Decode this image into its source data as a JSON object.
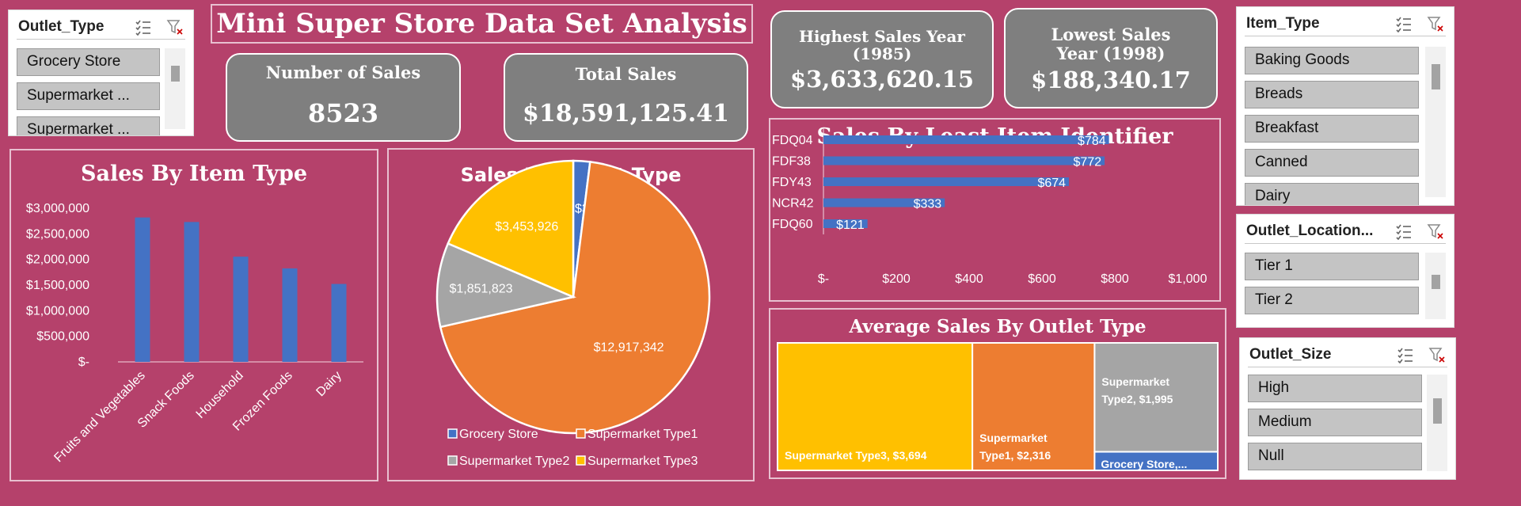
{
  "title": "Mini Super Store Data Set Analysis",
  "kpis": {
    "number_of_sales": {
      "label": "Number of Sales",
      "value": "8523"
    },
    "total_sales": {
      "label": "Total Sales",
      "value": "$18,591,125.41"
    },
    "highest_year": {
      "label": "Highest Sales Year (1985)",
      "value": "$3,633,620.15"
    },
    "lowest_year": {
      "label": "Lowest Sales Year (1998)",
      "value": "$188,340.17"
    }
  },
  "slicers": {
    "outlet_type": {
      "title": "Outlet_Type",
      "items": [
        "Grocery Store",
        "Supermarket ...",
        "Supermarket ..."
      ]
    },
    "item_type": {
      "title": "Item_Type",
      "items": [
        "Baking Goods",
        "Breads",
        "Breakfast",
        "Canned",
        "Dairy"
      ]
    },
    "outlet_location": {
      "title": "Outlet_Location...",
      "items": [
        "Tier 1",
        "Tier 2"
      ]
    },
    "outlet_size": {
      "title": "Outlet_Size",
      "items": [
        "High",
        "Medium",
        "Null"
      ]
    }
  },
  "icons": {
    "multi_select": "multi-select-icon",
    "clear_filter": "clear-filter-icon"
  },
  "colors": {
    "background": "#b5416b",
    "bar_blue": "#4472c4",
    "orange": "#ed7d31",
    "gray": "#a5a5a5",
    "gold": "#ffc000",
    "kpi_gray": "#7f7f7f"
  },
  "chart_data": [
    {
      "type": "bar",
      "title": "Sales By Item Type",
      "categories": [
        "Fruits and Vegetables",
        "Snack Foods",
        "Household",
        "Frozen Foods",
        "Dairy"
      ],
      "values": [
        2820000,
        2732000,
        2055000,
        1826000,
        1522000
      ],
      "ylim": [
        0,
        3000000
      ],
      "yticks": [
        "$-",
        "$500,000",
        "$1,000,000",
        "$1,500,000",
        "$2,000,000",
        "$2,500,000",
        "$3,000,000"
      ],
      "color": "#4472c4"
    },
    {
      "type": "pie",
      "title": "Sales By Outlet Type",
      "series": [
        {
          "name": "Grocery Store",
          "value": 368034,
          "label": "$368,034",
          "color": "#4472c4"
        },
        {
          "name": "Supermarket Type1",
          "value": 12917342,
          "label": "$12,917,342",
          "color": "#ed7d31"
        },
        {
          "name": "Supermarket Type2",
          "value": 1851823,
          "label": "$1,851,823",
          "color": "#a5a5a5"
        },
        {
          "name": "Supermarket Type3",
          "value": 3453926,
          "label": "$3,453,926",
          "color": "#ffc000"
        }
      ],
      "legend": "bottom"
    },
    {
      "type": "bar",
      "orientation": "horizontal",
      "title": "Sales By Least Item Identifier",
      "categories": [
        "FDQ04",
        "FDF38",
        "FDY43",
        "NCR42",
        "FDQ60"
      ],
      "values": [
        784,
        772,
        674,
        333,
        121
      ],
      "labels": [
        "$784",
        "$772",
        "$674",
        "$333",
        "$121"
      ],
      "xlim": [
        0,
        1000
      ],
      "xticks": [
        "$-",
        "$200",
        "$400",
        "$600",
        "$800",
        "$1,000"
      ],
      "color": "#4472c4"
    },
    {
      "type": "treemap",
      "title": "Average Sales By Outlet Type",
      "series": [
        {
          "name": "Supermarket Type3",
          "value": 3694,
          "label": "Supermarket Type3,  $3,694",
          "color": "#ffc000"
        },
        {
          "name": "Supermarket Type1",
          "value": 2316,
          "label": "Supermarket Type1,  $2,316",
          "color": "#ed7d31"
        },
        {
          "name": "Supermarket Type2",
          "value": 1995,
          "label": "Supermarket Type2,  $1,995",
          "color": "#a5a5a5"
        },
        {
          "name": "Grocery Store",
          "value": 340,
          "label": "Grocery Store,...",
          "color": "#4472c4"
        }
      ]
    }
  ]
}
